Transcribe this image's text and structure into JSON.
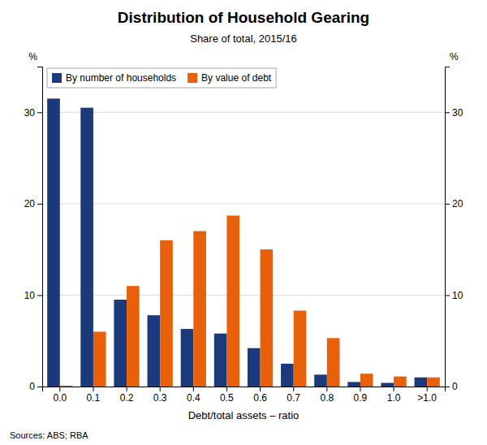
{
  "chart_data": {
    "type": "bar",
    "title": "Distribution of Household Gearing",
    "subtitle": "Share of total, 2015/16",
    "xlabel": "Debt/total assets – ratio",
    "ylabel": "%",
    "y2label": "%",
    "source": "Sources: ABS; RBA",
    "categories": [
      "0.0",
      "0.1",
      "0.2",
      "0.3",
      "0.4",
      "0.5",
      "0.6",
      "0.7",
      "0.8",
      "0.9",
      "1.0",
      ">1.0"
    ],
    "series": [
      {
        "name": "By number of households",
        "color": "#1a3a7c",
        "values": [
          31.5,
          30.5,
          9.5,
          7.8,
          6.3,
          5.8,
          4.2,
          2.5,
          1.3,
          0.5,
          0.4,
          1.0
        ]
      },
      {
        "name": "By value of debt",
        "color": "#e8610a",
        "values": [
          0.1,
          6.0,
          11.0,
          16.0,
          17.0,
          18.7,
          15.0,
          8.3,
          5.3,
          1.4,
          1.1,
          1.0
        ]
      }
    ],
    "ylim": [
      0,
      35
    ],
    "yticks": [
      0,
      10,
      20,
      30
    ],
    "y2lim": [
      0,
      35
    ],
    "y2ticks": [
      0,
      10,
      20,
      30
    ],
    "grid": true,
    "legend": "upper left"
  }
}
